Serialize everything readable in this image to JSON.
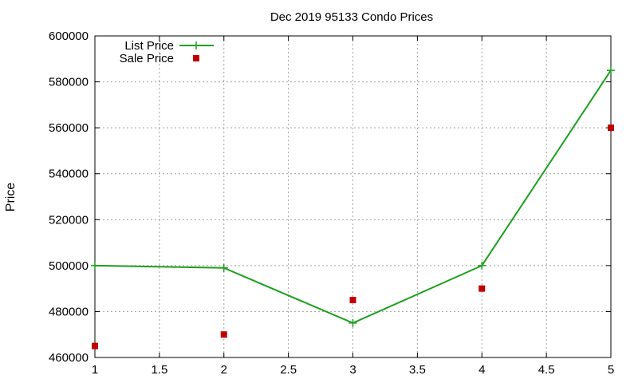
{
  "chart_data": {
    "type": "line",
    "title": "Dec 2019 95133 Condo Prices",
    "xlabel": "",
    "ylabel": "Price",
    "xlim": [
      1,
      5
    ],
    "ylim": [
      460000,
      600000
    ],
    "xticks": [
      1,
      1.5,
      2,
      2.5,
      3,
      3.5,
      4,
      4.5,
      5
    ],
    "xtick_labels": [
      "1",
      "1.5",
      "2",
      "2.5",
      "3",
      "3.5",
      "4",
      "4.5",
      "5"
    ],
    "yticks": [
      460000,
      480000,
      500000,
      520000,
      540000,
      560000,
      580000,
      600000
    ],
    "ytick_labels": [
      "460000",
      "480000",
      "500000",
      "520000",
      "540000",
      "560000",
      "580000",
      "600000"
    ],
    "grid": true,
    "legend_position": "top-left",
    "series": [
      {
        "name": "List Price",
        "style": "line-with-plus",
        "color": "#1ca01c",
        "x": [
          1,
          2,
          3,
          4,
          5
        ],
        "y": [
          500000,
          499000,
          475000,
          500000,
          585000
        ]
      },
      {
        "name": "Sale Price",
        "style": "square-points",
        "color": "#c00000",
        "x": [
          1,
          2,
          3,
          4,
          5
        ],
        "y": [
          465000,
          470000,
          485000,
          490000,
          560000
        ]
      }
    ]
  }
}
